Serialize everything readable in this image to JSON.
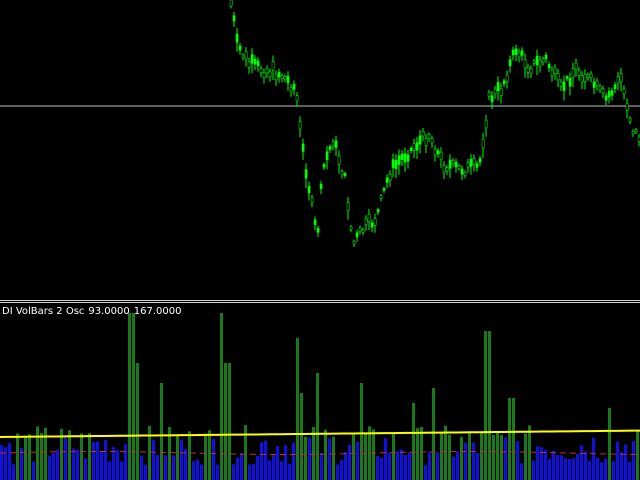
{
  "indicator": {
    "name": "DI VolBars 2 Osc",
    "value1": "93.0000",
    "value2": "167.0000"
  },
  "colors": {
    "background": "#000000",
    "candle": "#00ff00",
    "level_line": "#c0c0c0",
    "bar_above": "#1a7a1a",
    "bar_below": "#1010e0",
    "signal_line": "#ffff00",
    "dashed_line": "#c03030"
  }
}
